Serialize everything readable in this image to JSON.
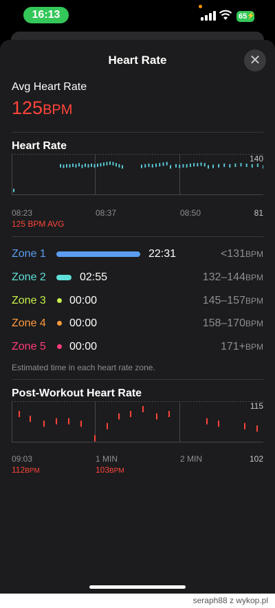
{
  "status": {
    "time": "16:13",
    "battery": "65"
  },
  "sheet": {
    "title": "Heart Rate",
    "close_icon": "close-icon"
  },
  "avg": {
    "label": "Avg Heart Rate",
    "value": "125",
    "unit": "BPM"
  },
  "hr_chart": {
    "title": "Heart Rate",
    "y_max": "140",
    "y_min": "81",
    "x_labels": [
      "08:23",
      "08:37",
      "08:50"
    ],
    "avg_label": "125 BPM AVG",
    "color": "#5ac8d4",
    "chart_data": {
      "type": "scatter",
      "ylim": [
        81,
        140
      ],
      "series": [
        {
          "values": [
            82,
            128,
            127,
            128,
            128,
            129,
            128,
            130,
            127,
            129,
            128,
            129,
            128,
            129,
            130,
            131,
            132,
            133,
            132,
            130,
            128,
            126,
            127,
            128,
            129,
            128,
            129,
            130,
            131,
            132,
            126,
            128,
            127,
            128,
            128,
            129,
            130,
            130,
            131,
            130,
            126,
            127,
            128,
            129,
            128,
            129,
            130,
            129,
            128,
            129,
            126
          ]
        }
      ]
    }
  },
  "zones": [
    {
      "name": "Zone 1",
      "time": "22:31",
      "range": "<131",
      "unit": "BPM",
      "color": "#5b9cf0",
      "fraction": 1.0
    },
    {
      "name": "Zone 2",
      "time": "02:55",
      "range": "132–144",
      "unit": "BPM",
      "color": "#5ee0d8",
      "fraction": 0.13
    },
    {
      "name": "Zone 3",
      "time": "00:00",
      "range": "145–157",
      "unit": "BPM",
      "color": "#c8f04a",
      "fraction": 0
    },
    {
      "name": "Zone 4",
      "time": "00:00",
      "range": "158–170",
      "unit": "BPM",
      "color": "#ff9a3c",
      "fraction": 0
    },
    {
      "name": "Zone 5",
      "time": "00:00",
      "range": "171+",
      "unit": "BPM",
      "color": "#ff3b7a",
      "fraction": 0
    }
  ],
  "zone_note": "Estimated time in each heart rate zone.",
  "post_chart": {
    "title": "Post-Workout Heart Rate",
    "y_max": "115",
    "y_min": "102",
    "x_labels": [
      "09:03",
      "1 MIN",
      "2 MIN"
    ],
    "marker1": {
      "value": "112",
      "unit": "BPM"
    },
    "marker2": {
      "value": "103",
      "unit": "BPM"
    },
    "color": "#ff453a",
    "chart_data": {
      "type": "scatter",
      "ylim": [
        102,
        115
      ],
      "series": [
        {
          "values": [
            112,
            110,
            108,
            109,
            109,
            108,
            102,
            107,
            111,
            112,
            114,
            111,
            112,
            109,
            108,
            107,
            106
          ]
        }
      ]
    }
  },
  "footer": {
    "text": "seraph88  z  wykop.pl"
  }
}
